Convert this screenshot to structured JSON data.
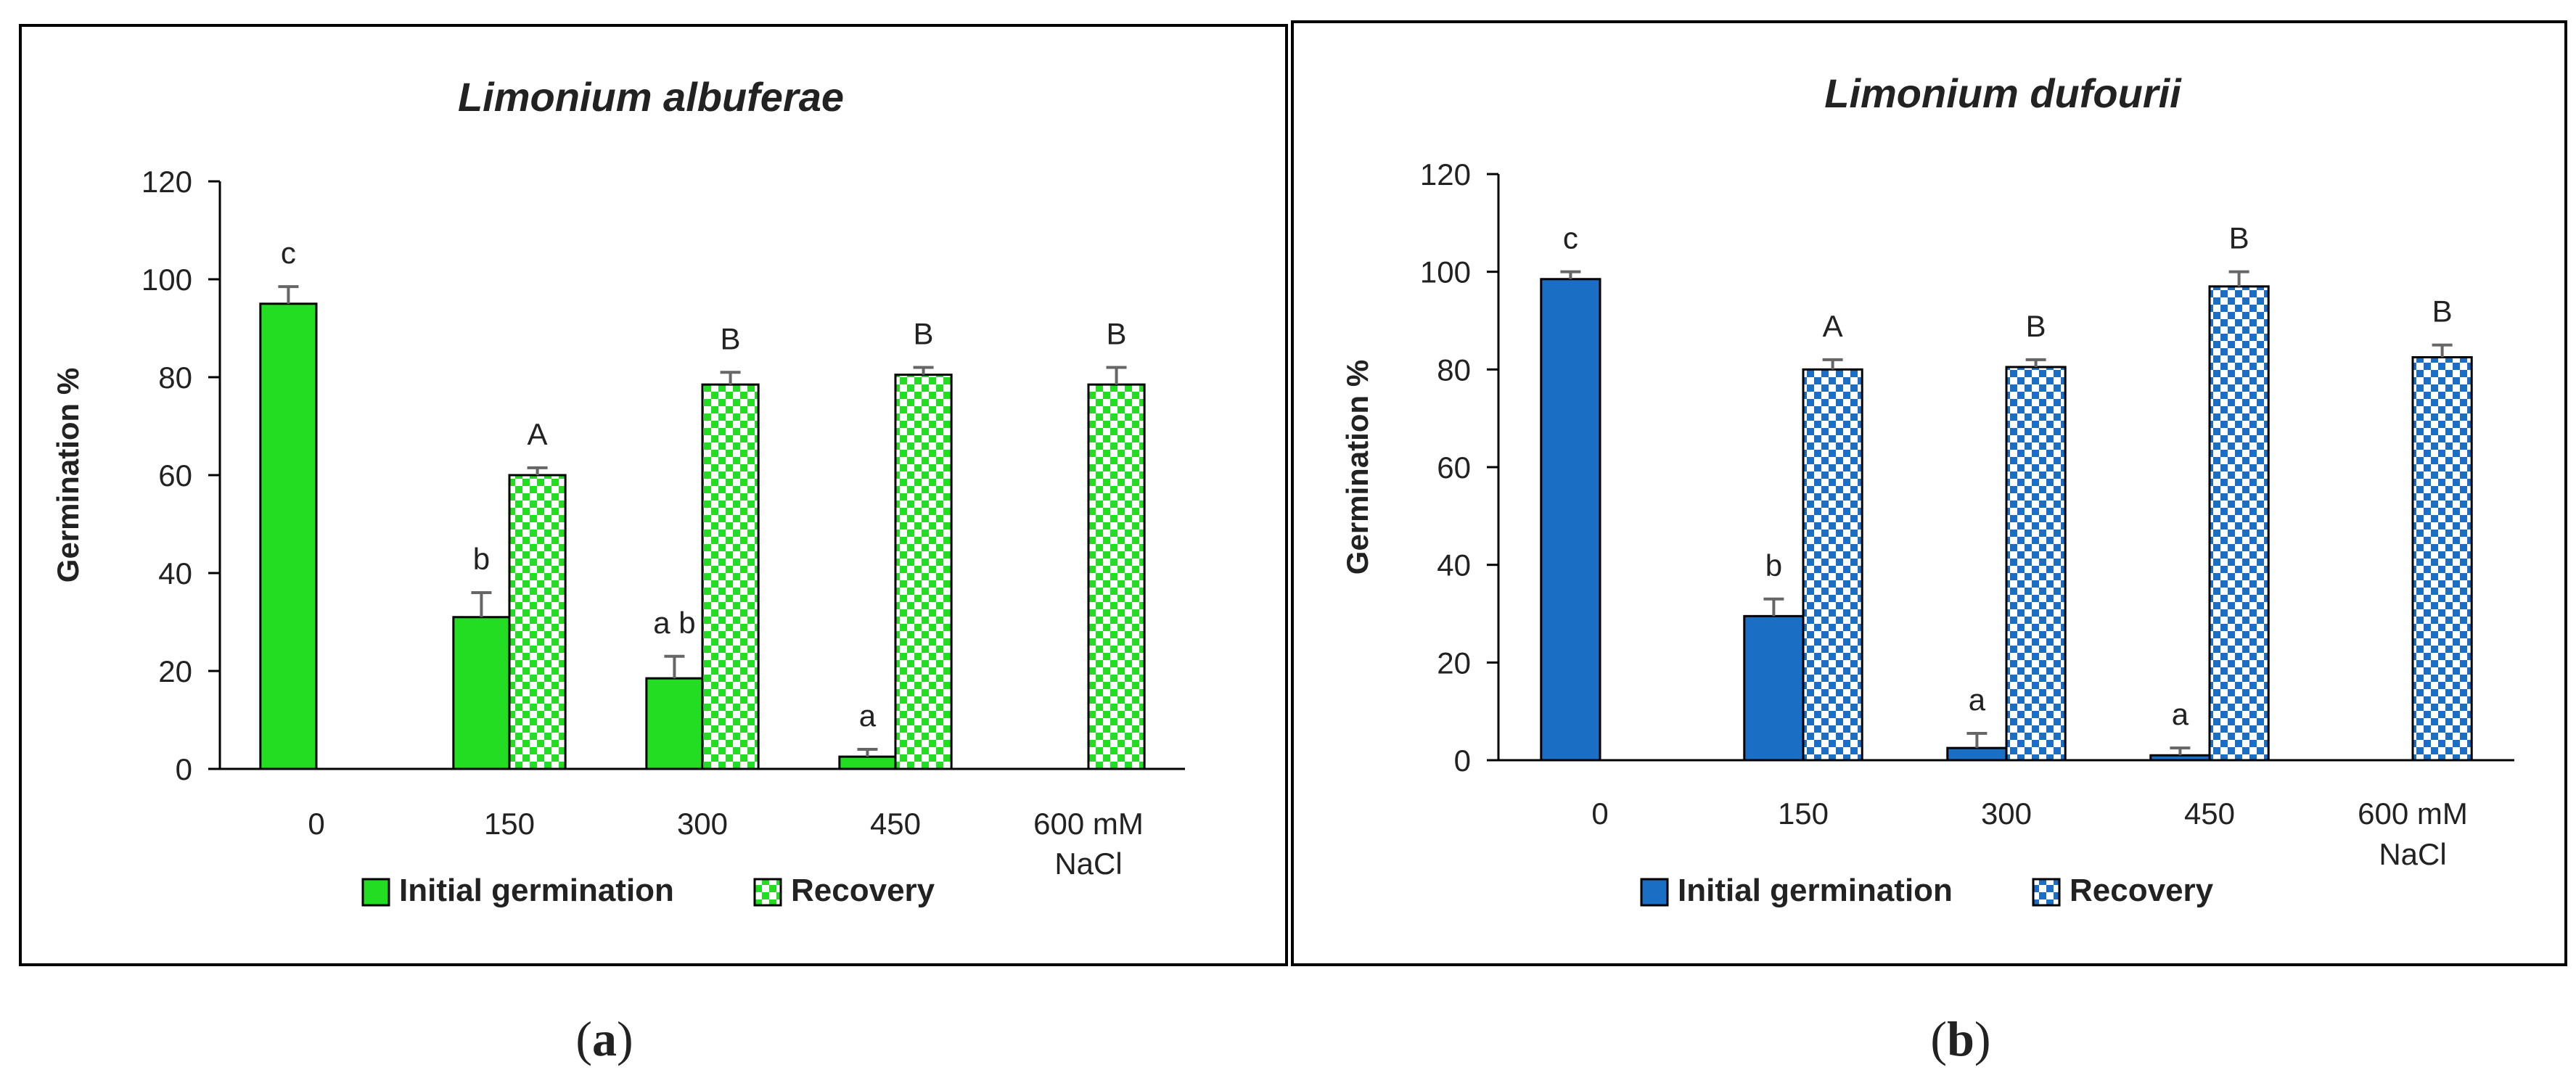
{
  "colors": {
    "panel_a": "#22dd22",
    "panel_b": "#1a6fc4",
    "error_bar": "#666666",
    "frame": "#000000"
  },
  "legend_labels": [
    "Initial germination",
    "Recovery"
  ],
  "chart_data": [
    {
      "type": "bar",
      "panel_label": "(a)",
      "panel_label_parts": [
        "(",
        "a",
        ")"
      ],
      "title": "Limonium albuferae",
      "ylabel": "Germination %",
      "xlabel": "",
      "ylim": [
        0,
        120
      ],
      "yticks": [
        0,
        20,
        40,
        60,
        80,
        100,
        120
      ],
      "categories": [
        "0",
        "150",
        "300",
        "450",
        "600 mM NaCl"
      ],
      "category_lines": [
        [
          "0"
        ],
        [
          "150"
        ],
        [
          "300"
        ],
        [
          "450"
        ],
        [
          "600 mM",
          "NaCl"
        ]
      ],
      "series": [
        {
          "name": "Initial germination",
          "pattern": "solid",
          "values": [
            95,
            31,
            18.5,
            2.5,
            null
          ],
          "errors": [
            3.5,
            5,
            4.5,
            1.5,
            null
          ],
          "labels": [
            "c",
            "b",
            "a b",
            "a",
            null
          ]
        },
        {
          "name": "Recovery",
          "pattern": "checker",
          "values": [
            null,
            60,
            78.5,
            80.5,
            78.5
          ],
          "errors": [
            null,
            1.5,
            2.5,
            1.5,
            3.5
          ],
          "labels": [
            null,
            "A",
            "B",
            "B",
            "B"
          ]
        }
      ]
    },
    {
      "type": "bar",
      "panel_label": "(b)",
      "panel_label_parts": [
        "(",
        "b",
        ")"
      ],
      "title": "Limonium dufourii",
      "ylabel": "Germination %",
      "xlabel": "",
      "ylim": [
        0,
        120
      ],
      "yticks": [
        0,
        20,
        40,
        60,
        80,
        100,
        120
      ],
      "categories": [
        "0",
        "150",
        "300",
        "450",
        "600 mM NaCl"
      ],
      "category_lines": [
        [
          "0"
        ],
        [
          "150"
        ],
        [
          "300"
        ],
        [
          "450"
        ],
        [
          "600 mM",
          "NaCl"
        ]
      ],
      "series": [
        {
          "name": "Initial germination",
          "pattern": "solid",
          "values": [
            98.5,
            29.5,
            2.5,
            1,
            null
          ],
          "errors": [
            1.5,
            3.5,
            3,
            1.5,
            null
          ],
          "labels": [
            "c",
            "b",
            "a",
            "a",
            null
          ]
        },
        {
          "name": "Recovery",
          "pattern": "checker",
          "values": [
            null,
            80,
            80.5,
            97,
            82.5
          ],
          "errors": [
            null,
            2,
            1.5,
            3,
            2.5
          ],
          "labels": [
            null,
            "A",
            "B",
            "B",
            "B"
          ]
        }
      ]
    }
  ]
}
